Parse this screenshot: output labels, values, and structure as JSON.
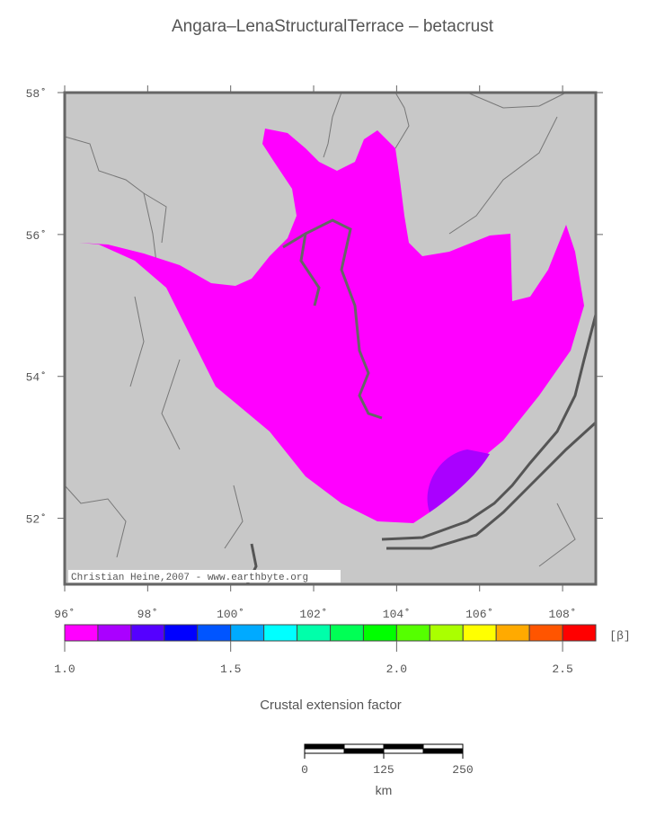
{
  "title": "Angara–LenaStructuralTerrace – betacrust",
  "map": {
    "lonlim": [
      96,
      108.8
    ],
    "latlim": [
      51.07,
      58
    ],
    "lon_ticks": [
      {
        "value": 96,
        "label": "96˚"
      },
      {
        "value": 98,
        "label": "98˚"
      },
      {
        "value": 100,
        "label": "100˚"
      },
      {
        "value": 102,
        "label": "102˚"
      },
      {
        "value": 104,
        "label": "104˚"
      },
      {
        "value": 106,
        "label": "106˚"
      },
      {
        "value": 108,
        "label": "108˚"
      }
    ],
    "lat_ticks": [
      {
        "value": 58,
        "label": "58˚"
      },
      {
        "value": 56,
        "label": "56˚"
      },
      {
        "value": 54,
        "label": "54˚"
      },
      {
        "value": 52,
        "label": "52˚"
      }
    ],
    "credit": "Christian Heine,2007 - www.earthbyte.org"
  },
  "colorbar": {
    "range": [
      1,
      2.6
    ],
    "colors": [
      "#ff00ff",
      "#aa00ff",
      "#5500ff",
      "#0000ff",
      "#0055ff",
      "#00aaff",
      "#00ffff",
      "#00ffaa",
      "#00ff55",
      "#00ff00",
      "#55ff00",
      "#aaff00",
      "#ffff00",
      "#ffaa00",
      "#ff5500",
      "#ff0000"
    ],
    "ticks": [
      {
        "value": 1,
        "label": "1.0"
      },
      1.5,
      {
        "value": 2,
        "label": "2.0"
      },
      2.5
    ],
    "unit": "[β]",
    "label": "Crustal extension factor"
  },
  "scalebar": {
    "range": [
      0,
      250
    ],
    "ticks": [
      0,
      125,
      250
    ],
    "unit": "km"
  }
}
